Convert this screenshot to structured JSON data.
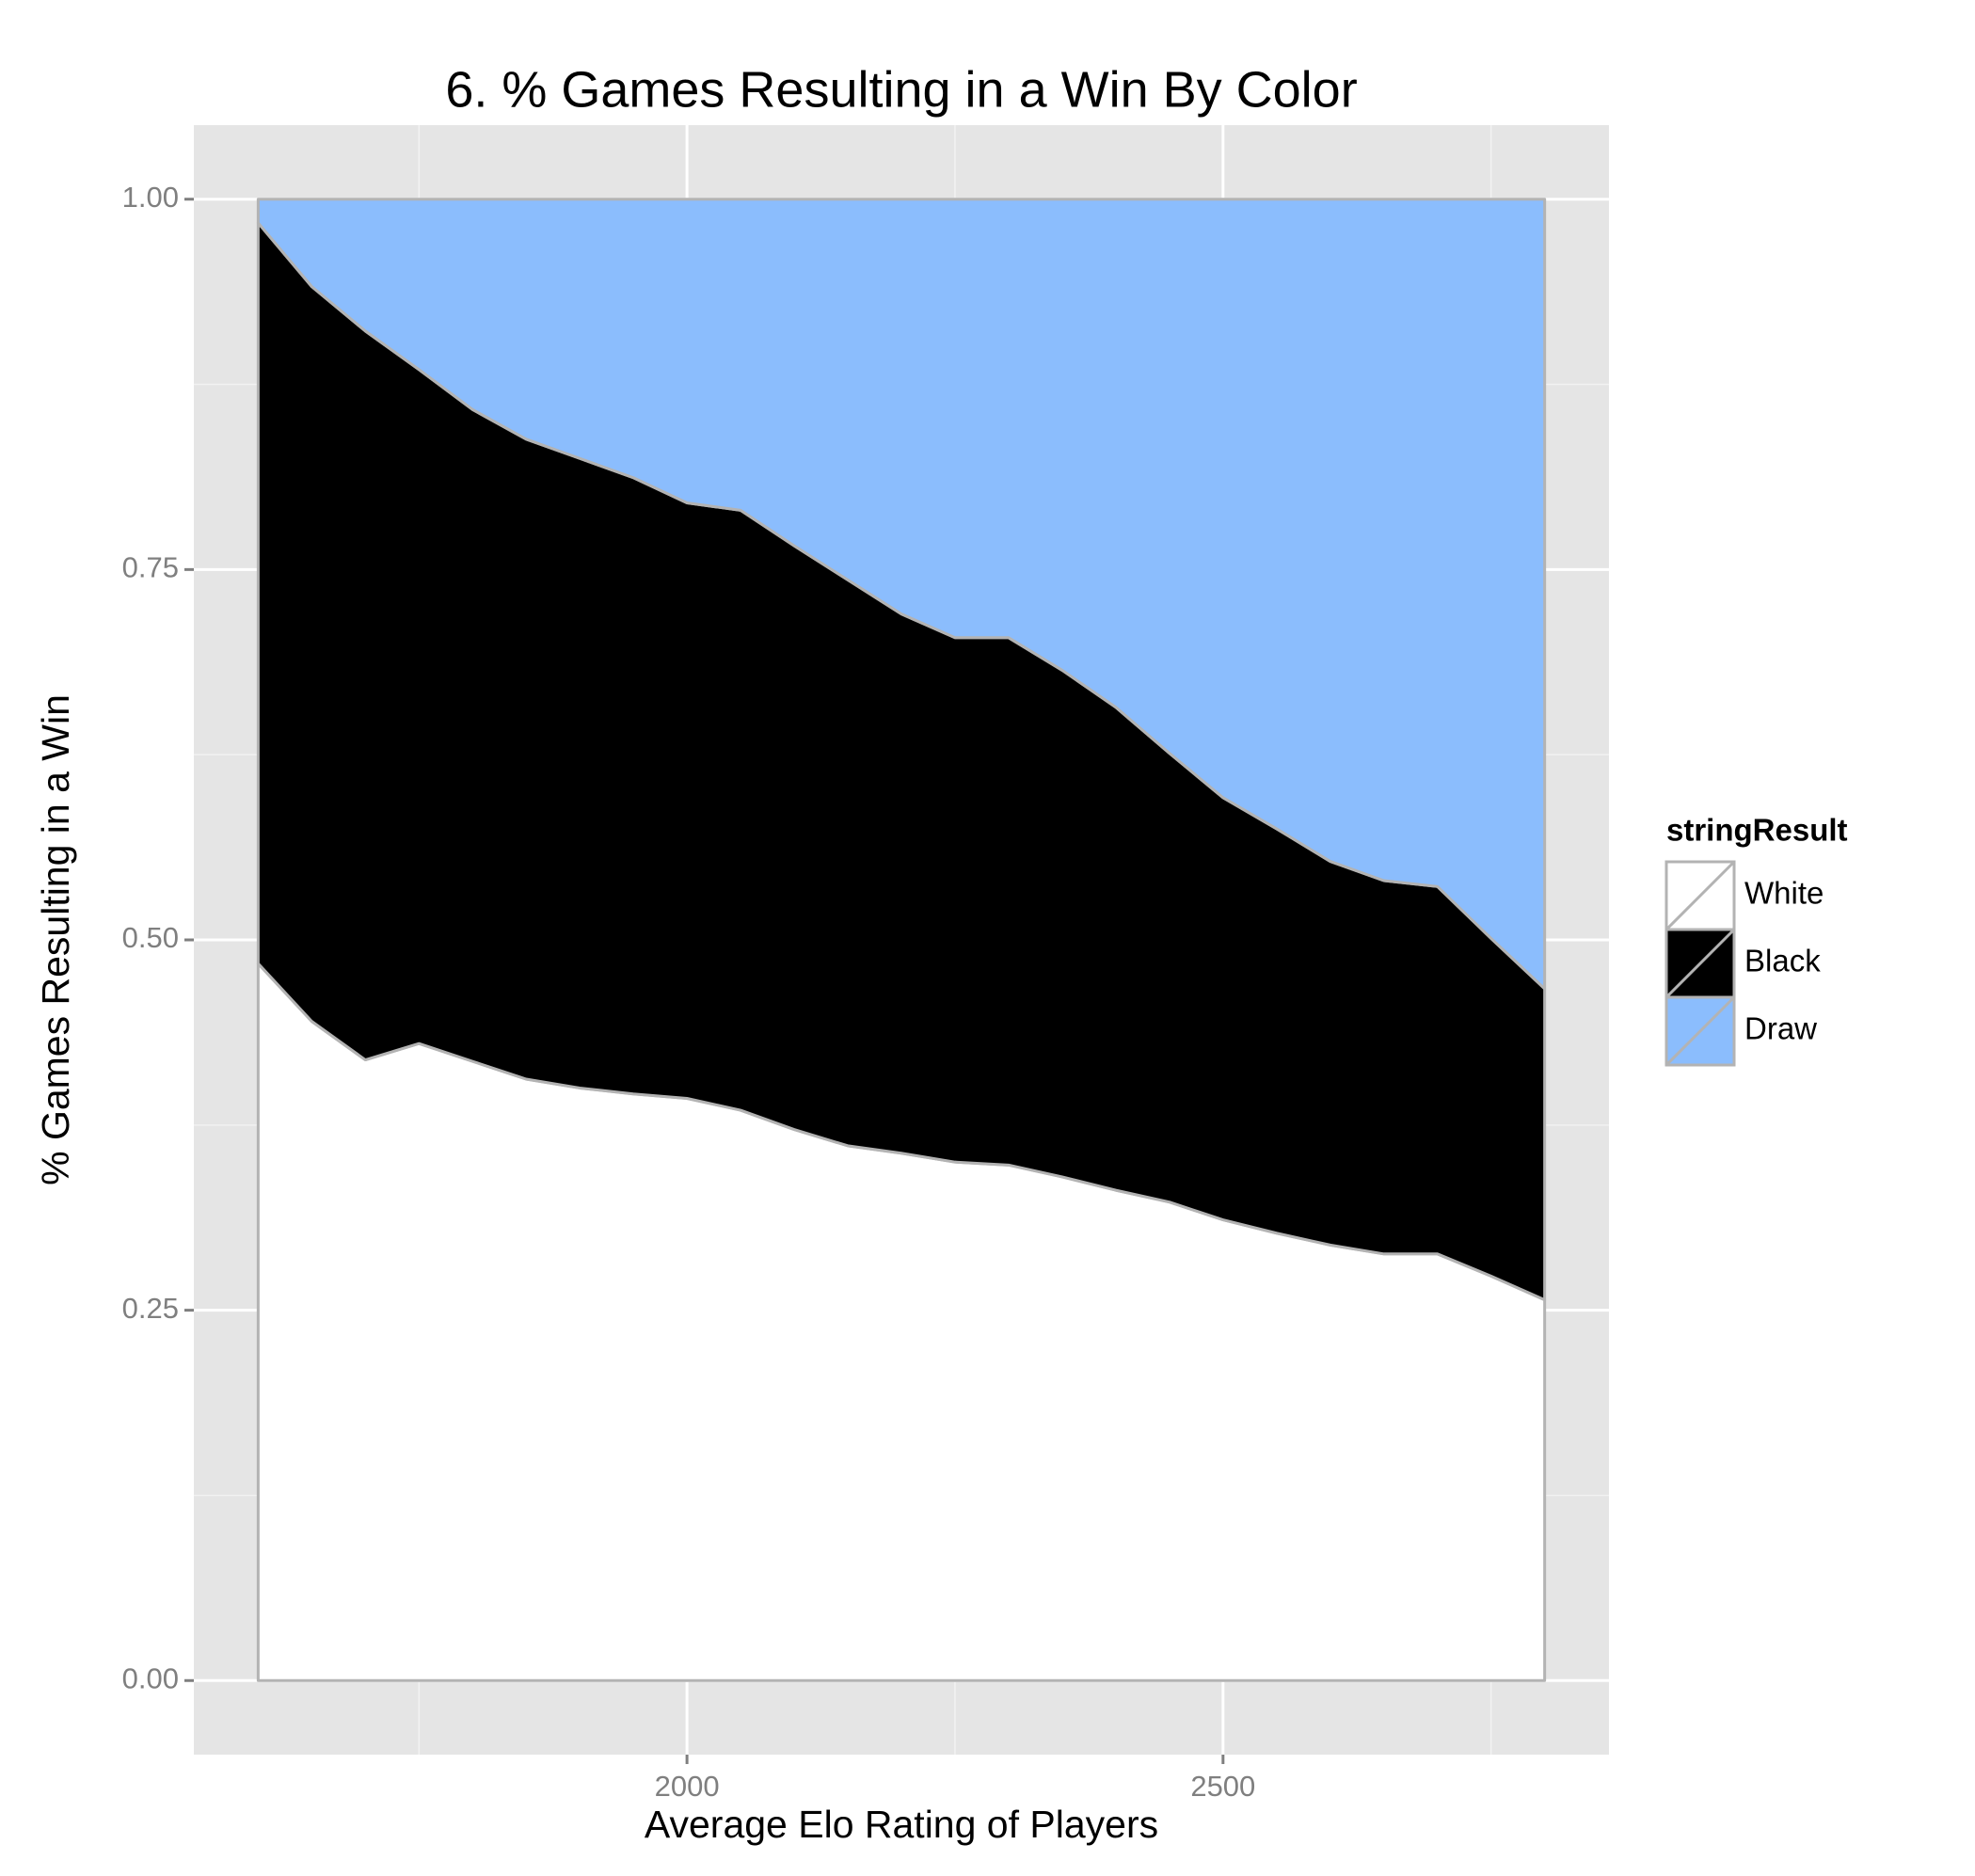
{
  "chart_data": {
    "type": "area",
    "stacked": true,
    "title": "6. % Games Resulting in a Win By Color",
    "x_label": "Average Elo Rating of Players",
    "y_label": "% Games Resulting in a Win",
    "legend_title": "stringResult",
    "legend_position": "right",
    "grid": true,
    "outline_color": "#b3b3b3",
    "x": [
      1600,
      1650,
      1700,
      1750,
      1800,
      1850,
      1900,
      1950,
      2000,
      2050,
      2100,
      2150,
      2200,
      2250,
      2300,
      2350,
      2400,
      2450,
      2500,
      2550,
      2600,
      2650,
      2700,
      2750,
      2800
    ],
    "series": [
      {
        "name": "White",
        "color": "#ffffff",
        "values": [
          0.484,
          0.445,
          0.419,
          0.43,
          0.418,
          0.406,
          0.4,
          0.396,
          0.393,
          0.385,
          0.372,
          0.361,
          0.356,
          0.35,
          0.348,
          0.34,
          0.331,
          0.323,
          0.311,
          0.302,
          0.294,
          0.288,
          0.288,
          0.273,
          0.257
        ]
      },
      {
        "name": "Black",
        "color": "#000000",
        "values": [
          0.5,
          0.496,
          0.492,
          0.455,
          0.44,
          0.432,
          0.425,
          0.416,
          0.402,
          0.405,
          0.394,
          0.382,
          0.364,
          0.354,
          0.356,
          0.342,
          0.326,
          0.303,
          0.285,
          0.273,
          0.259,
          0.252,
          0.248,
          0.228,
          0.21
        ]
      },
      {
        "name": "Draw",
        "color": "#8bbdfd",
        "values": [
          0.016,
          0.059,
          0.089,
          0.115,
          0.142,
          0.162,
          0.175,
          0.188,
          0.205,
          0.21,
          0.234,
          0.257,
          0.28,
          0.296,
          0.296,
          0.318,
          0.343,
          0.374,
          0.404,
          0.425,
          0.447,
          0.46,
          0.464,
          0.499,
          0.533
        ]
      }
    ],
    "xlim": [
      1540,
      2860
    ],
    "xticks": [
      2000,
      2500
    ],
    "ylim": [
      -0.05,
      1.05
    ],
    "yticks": [
      {
        "value": 0,
        "label": "0.00"
      },
      {
        "value": 0.25,
        "label": "0.25"
      },
      {
        "value": 0.5,
        "label": "0.50"
      },
      {
        "value": 0.75,
        "label": "0.75"
      },
      {
        "value": 1,
        "label": "1.00"
      }
    ]
  }
}
